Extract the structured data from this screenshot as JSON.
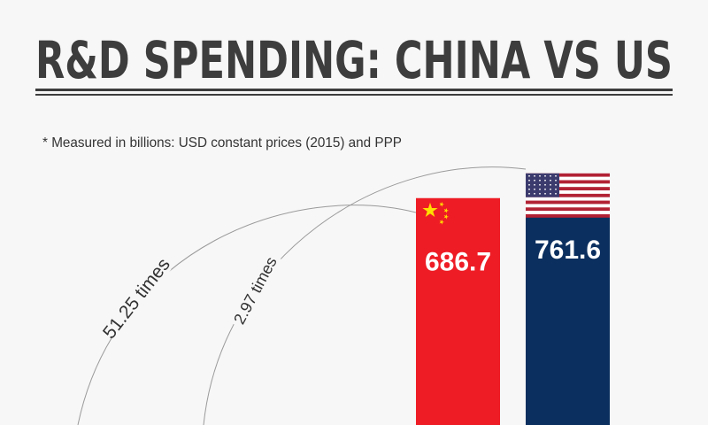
{
  "title": "R&D SPENDING: CHINA VS US",
  "subtitle": "* Measured in billions: USD constant prices (2015) and PPP",
  "colors": {
    "background": "#f7f7f7",
    "title": "#3d3d3d",
    "china": "#ee1c25",
    "us": "#0b2f5f",
    "arc": "#9a9a9a"
  },
  "chart_data": {
    "type": "bar",
    "title": "R&D SPENDING: CHINA VS US",
    "categories": [
      "China",
      "US"
    ],
    "values": [
      686.7,
      761.6
    ],
    "value_labels": [
      "686.7",
      "761.6"
    ],
    "bar_icons": [
      "china-flag",
      "us-flag"
    ],
    "annotations": [
      "51.25 times",
      "2.97 times"
    ]
  }
}
